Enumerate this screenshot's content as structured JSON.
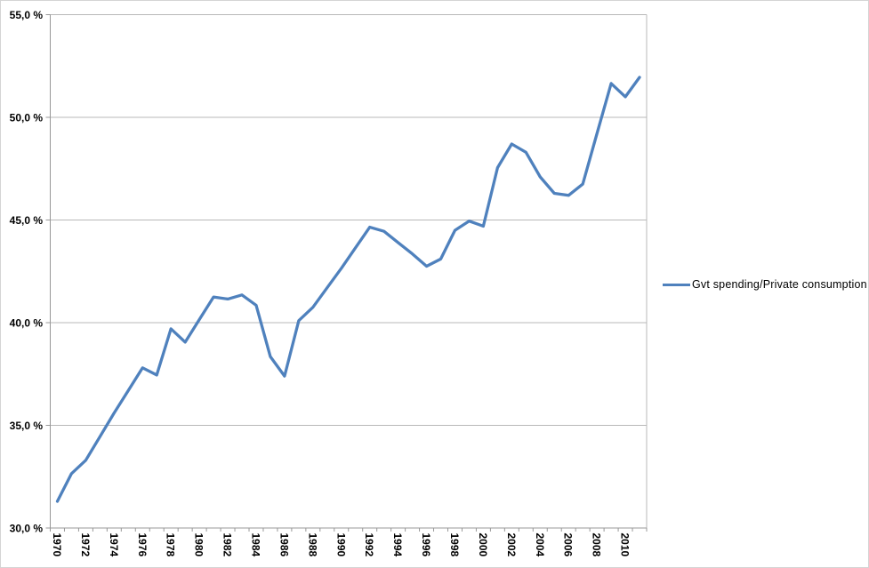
{
  "chart_data": {
    "type": "line",
    "title": "",
    "legend": "Gvt spending/Private consumption",
    "legend_position": "right",
    "grid": true,
    "x": [
      1970,
      1971,
      1972,
      1973,
      1974,
      1975,
      1976,
      1977,
      1978,
      1979,
      1980,
      1981,
      1982,
      1983,
      1984,
      1985,
      1986,
      1987,
      1988,
      1989,
      1990,
      1991,
      1992,
      1993,
      1994,
      1995,
      1996,
      1997,
      1998,
      1999,
      2000,
      2001,
      2002,
      2003,
      2004,
      2005,
      2006,
      2007,
      2008,
      2009,
      2010,
      2011
    ],
    "series": [
      {
        "name": "Gvt spending/Private consumption",
        "values": [
          31.3,
          32.65,
          33.3,
          34.45,
          35.6,
          36.7,
          37.8,
          37.45,
          39.7,
          39.05,
          40.15,
          41.25,
          41.15,
          41.35,
          40.85,
          38.35,
          37.4,
          40.1,
          40.75,
          41.7,
          42.65,
          43.65,
          44.65,
          44.45,
          43.9,
          43.35,
          42.75,
          43.1,
          44.5,
          44.95,
          44.7,
          47.55,
          48.7,
          48.3,
          47.1,
          46.3,
          46.2,
          46.75,
          49.2,
          51.65,
          51.0,
          51.95
        ]
      }
    ],
    "xlabel": "",
    "ylabel": "",
    "ylim": [
      30,
      55
    ],
    "y_ticks": [
      30,
      35,
      40,
      45,
      50,
      55
    ],
    "y_tick_labels": [
      "30,0 %",
      "35,0 %",
      "40,0 %",
      "45,0 %",
      "50,0 %",
      "55,0 %"
    ],
    "x_tick_labels": [
      "1970",
      "1972",
      "1974",
      "1976",
      "1978",
      "1980",
      "1982",
      "1984",
      "1986",
      "1988",
      "1990",
      "1992",
      "1994",
      "1996",
      "1998",
      "2000",
      "2002",
      "2004",
      "2006",
      "2008",
      "2010"
    ],
    "colors": {
      "line": "#4F81BD",
      "gridline": "#b8b8b8",
      "axis": "#989898",
      "text": "#000000",
      "background": "#ffffff",
      "frame_border": "#d4d4d4"
    }
  }
}
